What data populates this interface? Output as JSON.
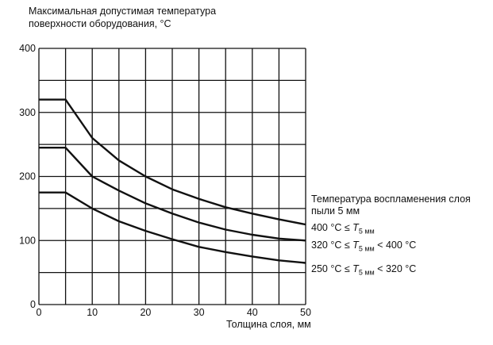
{
  "chart_data": {
    "type": "line",
    "ylabel_line1": "Максимальная допустимая температура",
    "ylabel_line2": "поверхности оборудования, °C",
    "xlabel": "Толщина слоя, мм",
    "xlim": [
      0,
      50
    ],
    "ylim": [
      0,
      400
    ],
    "xticks": [
      0,
      10,
      20,
      30,
      40,
      50
    ],
    "yticks": [
      0,
      100,
      200,
      300,
      400
    ],
    "grid": true,
    "grid_x_step": 5,
    "grid_y_step": 50,
    "legend_title_line1": "Температура воспламенения слоя",
    "legend_title_line2": "пыли 5 мм",
    "legend_placement": "right",
    "x": [
      0,
      5,
      10,
      15,
      20,
      25,
      30,
      35,
      40,
      45,
      50
    ],
    "series": [
      {
        "name": "400 °C ≤ T5 мм",
        "label_pre": "400 °C ≤ ",
        "label_post": "",
        "values": [
          320,
          320,
          260,
          225,
          200,
          180,
          165,
          152,
          142,
          133,
          125
        ]
      },
      {
        "name": "320 °C ≤ T5 мм < 400 °C",
        "label_pre": "320 °C ≤ ",
        "label_post": " < 400 °C",
        "values": [
          245,
          245,
          200,
          178,
          158,
          142,
          128,
          117,
          109,
          103,
          100
        ]
      },
      {
        "name": "250 °C ≤ T5 мм < 320 °C",
        "label_pre": "250 °C ≤ ",
        "label_post": " < 320 °C",
        "values": [
          175,
          175,
          150,
          130,
          115,
          102,
          90,
          82,
          75,
          69,
          65
        ]
      }
    ],
    "T_symbol": "T",
    "T_sub": "5 мм",
    "line_color": "#111111"
  }
}
